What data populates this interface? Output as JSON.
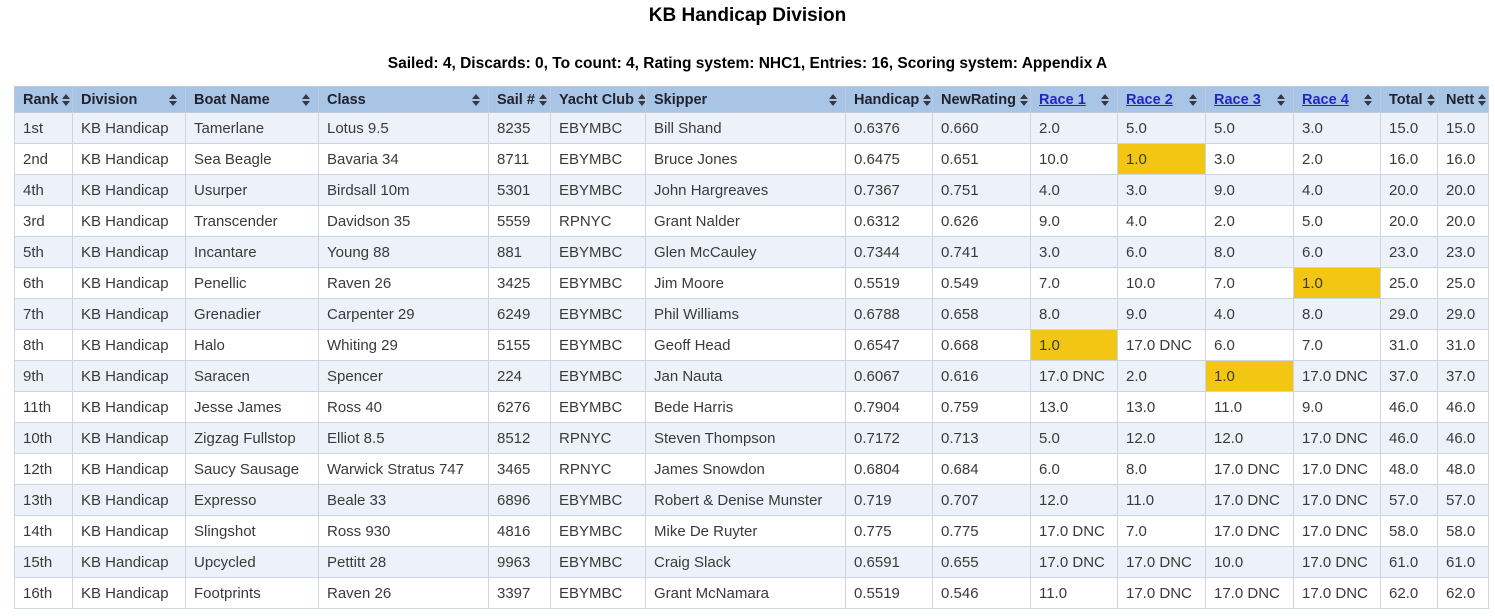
{
  "page": {
    "title": "KB Handicap Division",
    "subtitle": "Sailed: 4, Discards: 0, To count: 4, Rating system: NHC1, Entries: 16, Scoring system: Appendix A"
  },
  "colors": {
    "header_bg": "#a9c5e6",
    "row_alt_bg": "#edf2fa",
    "row_bg": "#ffffff",
    "highlight_gold": "#f2c613",
    "race_link_blue": "#2424cc",
    "cell_border": "#ccd6e2",
    "body_text": "#3a3a3a"
  },
  "icons": {
    "sort": "sort-arrows-icon"
  },
  "table": {
    "columns": [
      {
        "key": "rank",
        "label": "Rank",
        "is_link": false
      },
      {
        "key": "division",
        "label": "Division",
        "is_link": false
      },
      {
        "key": "boat_name",
        "label": "Boat Name",
        "is_link": false
      },
      {
        "key": "boat_class",
        "label": "Class",
        "is_link": false
      },
      {
        "key": "sail_no",
        "label": "Sail #",
        "is_link": false
      },
      {
        "key": "yacht_club",
        "label": "Yacht Club",
        "is_link": false
      },
      {
        "key": "skipper",
        "label": "Skipper",
        "is_link": false
      },
      {
        "key": "handicap",
        "label": "Handicap",
        "is_link": false
      },
      {
        "key": "new_rating",
        "label": "NewRating",
        "is_link": false
      },
      {
        "key": "race1",
        "label": "Race 1",
        "is_link": true
      },
      {
        "key": "race2",
        "label": "Race 2",
        "is_link": true
      },
      {
        "key": "race3",
        "label": "Race 3",
        "is_link": true
      },
      {
        "key": "race4",
        "label": "Race 4",
        "is_link": true
      },
      {
        "key": "total",
        "label": "Total",
        "is_link": false
      },
      {
        "key": "nett",
        "label": "Nett",
        "is_link": false
      }
    ],
    "rows": [
      {
        "rank": "1st",
        "division": "KB Handicap",
        "boat_name": "Tamerlane",
        "boat_class": "Lotus 9.5",
        "sail_no": "8235",
        "yacht_club": "EBYMBC",
        "skipper": "Bill Shand",
        "handicap": "0.6376",
        "new_rating": "0.660",
        "race1": "2.0",
        "race2": "5.0",
        "race3": "5.0",
        "race4": "3.0",
        "total": "15.0",
        "nett": "15.0",
        "highlights": []
      },
      {
        "rank": "2nd",
        "division": "KB Handicap",
        "boat_name": "Sea Beagle",
        "boat_class": "Bavaria 34",
        "sail_no": "8711",
        "yacht_club": "EBYMBC",
        "skipper": "Bruce Jones",
        "handicap": "0.6475",
        "new_rating": "0.651",
        "race1": "10.0",
        "race2": "1.0",
        "race3": "3.0",
        "race4": "2.0",
        "total": "16.0",
        "nett": "16.0",
        "highlights": [
          "race2"
        ]
      },
      {
        "rank": "4th",
        "division": "KB Handicap",
        "boat_name": "Usurper",
        "boat_class": "Birdsall 10m",
        "sail_no": "5301",
        "yacht_club": "EBYMBC",
        "skipper": "John Hargreaves",
        "handicap": "0.7367",
        "new_rating": "0.751",
        "race1": "4.0",
        "race2": "3.0",
        "race3": "9.0",
        "race4": "4.0",
        "total": "20.0",
        "nett": "20.0",
        "highlights": []
      },
      {
        "rank": "3rd",
        "division": "KB Handicap",
        "boat_name": "Transcender",
        "boat_class": "Davidson 35",
        "sail_no": "5559",
        "yacht_club": "RPNYC",
        "skipper": "Grant Nalder",
        "handicap": "0.6312",
        "new_rating": "0.626",
        "race1": "9.0",
        "race2": "4.0",
        "race3": "2.0",
        "race4": "5.0",
        "total": "20.0",
        "nett": "20.0",
        "highlights": []
      },
      {
        "rank": "5th",
        "division": "KB Handicap",
        "boat_name": "Incantare",
        "boat_class": "Young 88",
        "sail_no": "881",
        "yacht_club": "EBYMBC",
        "skipper": "Glen McCauley",
        "handicap": "0.7344",
        "new_rating": "0.741",
        "race1": "3.0",
        "race2": "6.0",
        "race3": "8.0",
        "race4": "6.0",
        "total": "23.0",
        "nett": "23.0",
        "highlights": []
      },
      {
        "rank": "6th",
        "division": "KB Handicap",
        "boat_name": "Penellic",
        "boat_class": "Raven 26",
        "sail_no": "3425",
        "yacht_club": "EBYMBC",
        "skipper": "Jim Moore",
        "handicap": "0.5519",
        "new_rating": "0.549",
        "race1": "7.0",
        "race2": "10.0",
        "race3": "7.0",
        "race4": "1.0",
        "total": "25.0",
        "nett": "25.0",
        "highlights": [
          "race4"
        ]
      },
      {
        "rank": "7th",
        "division": "KB Handicap",
        "boat_name": "Grenadier",
        "boat_class": "Carpenter 29",
        "sail_no": "6249",
        "yacht_club": "EBYMBC",
        "skipper": "Phil Williams",
        "handicap": "0.6788",
        "new_rating": "0.658",
        "race1": "8.0",
        "race2": "9.0",
        "race3": "4.0",
        "race4": "8.0",
        "total": "29.0",
        "nett": "29.0",
        "highlights": []
      },
      {
        "rank": "8th",
        "division": "KB Handicap",
        "boat_name": "Halo",
        "boat_class": "Whiting 29",
        "sail_no": "5155",
        "yacht_club": "EBYMBC",
        "skipper": "Geoff Head",
        "handicap": "0.6547",
        "new_rating": "0.668",
        "race1": "1.0",
        "race2": "17.0 DNC",
        "race3": "6.0",
        "race4": "7.0",
        "total": "31.0",
        "nett": "31.0",
        "highlights": [
          "race1"
        ]
      },
      {
        "rank": "9th",
        "division": "KB Handicap",
        "boat_name": "Saracen",
        "boat_class": "Spencer",
        "sail_no": "224",
        "yacht_club": "EBYMBC",
        "skipper": "Jan Nauta",
        "handicap": "0.6067",
        "new_rating": "0.616",
        "race1": "17.0 DNC",
        "race2": "2.0",
        "race3": "1.0",
        "race4": "17.0 DNC",
        "total": "37.0",
        "nett": "37.0",
        "highlights": [
          "race3"
        ]
      },
      {
        "rank": "11th",
        "division": "KB Handicap",
        "boat_name": "Jesse James",
        "boat_class": "Ross 40",
        "sail_no": "6276",
        "yacht_club": "EBYMBC",
        "skipper": "Bede Harris",
        "handicap": "0.7904",
        "new_rating": "0.759",
        "race1": "13.0",
        "race2": "13.0",
        "race3": "11.0",
        "race4": "9.0",
        "total": "46.0",
        "nett": "46.0",
        "highlights": []
      },
      {
        "rank": "10th",
        "division": "KB Handicap",
        "boat_name": "Zigzag Fullstop",
        "boat_class": "Elliot 8.5",
        "sail_no": "8512",
        "yacht_club": "RPNYC",
        "skipper": "Steven Thompson",
        "handicap": "0.7172",
        "new_rating": "0.713",
        "race1": "5.0",
        "race2": "12.0",
        "race3": "12.0",
        "race4": "17.0 DNC",
        "total": "46.0",
        "nett": "46.0",
        "highlights": []
      },
      {
        "rank": "12th",
        "division": "KB Handicap",
        "boat_name": "Saucy Sausage",
        "boat_class": "Warwick Stratus 747",
        "sail_no": "3465",
        "yacht_club": "RPNYC",
        "skipper": "James Snowdon",
        "handicap": "0.6804",
        "new_rating": "0.684",
        "race1": "6.0",
        "race2": "8.0",
        "race3": "17.0 DNC",
        "race4": "17.0 DNC",
        "total": "48.0",
        "nett": "48.0",
        "highlights": []
      },
      {
        "rank": "13th",
        "division": "KB Handicap",
        "boat_name": "Expresso",
        "boat_class": "Beale 33",
        "sail_no": "6896",
        "yacht_club": "EBYMBC",
        "skipper": "Robert & Denise Munster",
        "handicap": "0.719",
        "new_rating": "0.707",
        "race1": "12.0",
        "race2": "11.0",
        "race3": "17.0 DNC",
        "race4": "17.0 DNC",
        "total": "57.0",
        "nett": "57.0",
        "highlights": []
      },
      {
        "rank": "14th",
        "division": "KB Handicap",
        "boat_name": "Slingshot",
        "boat_class": "Ross 930",
        "sail_no": "4816",
        "yacht_club": "EBYMBC",
        "skipper": "Mike De Ruyter",
        "handicap": "0.775",
        "new_rating": "0.775",
        "race1": "17.0 DNC",
        "race2": "7.0",
        "race3": "17.0 DNC",
        "race4": "17.0 DNC",
        "total": "58.0",
        "nett": "58.0",
        "highlights": []
      },
      {
        "rank": "15th",
        "division": "KB Handicap",
        "boat_name": "Upcycled",
        "boat_class": "Pettitt 28",
        "sail_no": "9963",
        "yacht_club": "EBYMBC",
        "skipper": "Craig Slack",
        "handicap": "0.6591",
        "new_rating": "0.655",
        "race1": "17.0 DNC",
        "race2": "17.0 DNC",
        "race3": "10.0",
        "race4": "17.0 DNC",
        "total": "61.0",
        "nett": "61.0",
        "highlights": []
      },
      {
        "rank": "16th",
        "division": "KB Handicap",
        "boat_name": "Footprints",
        "boat_class": "Raven 26",
        "sail_no": "3397",
        "yacht_club": "EBYMBC",
        "skipper": "Grant McNamara",
        "handicap": "0.5519",
        "new_rating": "0.546",
        "race1": "11.0",
        "race2": "17.0 DNC",
        "race3": "17.0 DNC",
        "race4": "17.0 DNC",
        "total": "62.0",
        "nett": "62.0",
        "highlights": []
      }
    ]
  }
}
